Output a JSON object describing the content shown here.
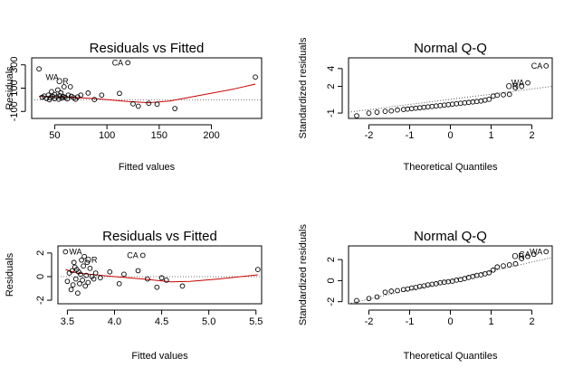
{
  "chart_data": [
    {
      "type": "scatter",
      "title": "Residuals vs Fitted",
      "xlabel": "Fitted values",
      "ylabel": "Residuals",
      "xlim": [
        28,
        248
      ],
      "ylim": [
        -160,
        360
      ],
      "xticks": [
        50,
        100,
        150,
        200
      ],
      "yticks": [
        -100,
        100,
        300
      ],
      "ytick_labels": [
        "-100",
        "100",
        "300"
      ],
      "points": [
        [
          35,
          265
        ],
        [
          38,
          22
        ],
        [
          40,
          32
        ],
        [
          42,
          12
        ],
        [
          44,
          40
        ],
        [
          45,
          0
        ],
        [
          46,
          18
        ],
        [
          47,
          70
        ],
        [
          48,
          30
        ],
        [
          50,
          10
        ],
        [
          50,
          45
        ],
        [
          52,
          25
        ],
        [
          53,
          85
        ],
        [
          54,
          5
        ],
        [
          55,
          35
        ],
        [
          56,
          60
        ],
        [
          57,
          15
        ],
        [
          58,
          28
        ],
        [
          59,
          112
        ],
        [
          60,
          22
        ],
        [
          62,
          8
        ],
        [
          63,
          40
        ],
        [
          65,
          112
        ],
        [
          66,
          30
        ],
        [
          68,
          18
        ],
        [
          70,
          5
        ],
        [
          72,
          25
        ],
        [
          75,
          40
        ],
        [
          82,
          58
        ],
        [
          88,
          2
        ],
        [
          95,
          40
        ],
        [
          112,
          55
        ],
        [
          120,
          318
        ],
        [
          125,
          -35
        ],
        [
          130,
          -55
        ],
        [
          140,
          -30
        ],
        [
          148,
          -38
        ],
        [
          165,
          -75
        ],
        [
          242,
          195
        ]
      ],
      "smooth": [
        [
          35,
          30
        ],
        [
          60,
          25
        ],
        [
          90,
          10
        ],
        [
          120,
          -15
        ],
        [
          140,
          -25
        ],
        [
          160,
          -10
        ],
        [
          190,
          40
        ],
        [
          220,
          90
        ],
        [
          242,
          135
        ]
      ],
      "refline": 0,
      "point_labels": [
        {
          "text": "CA",
          "x": 120,
          "y": 318
        },
        {
          "text": "WA",
          "x": 38,
          "y": 195
        },
        {
          "text": "OR",
          "x": 48,
          "y": 160
        }
      ]
    },
    {
      "type": "scatter",
      "title": "Normal Q-Q",
      "xlabel": "Theoretical Quantiles",
      "ylabel": "Standardized residuals",
      "xlim": [
        -2.5,
        2.5
      ],
      "ylim": [
        -1.6,
        5.2
      ],
      "xticks": [
        -2,
        -1,
        0,
        1,
        2
      ],
      "yticks": [
        -1,
        2,
        4
      ],
      "ytick_labels": [
        "-1",
        "2",
        "4"
      ],
      "refline_points": [
        [
          -2.5,
          -0.9
        ],
        [
          2.5,
          2.0
        ]
      ],
      "points": [
        [
          -2.3,
          -1.3
        ],
        [
          -2.0,
          -1.0
        ],
        [
          -1.8,
          -0.9
        ],
        [
          -1.6,
          -0.8
        ],
        [
          -1.45,
          -0.75
        ],
        [
          -1.3,
          -0.65
        ],
        [
          -1.15,
          -0.6
        ],
        [
          -1.05,
          -0.55
        ],
        [
          -0.95,
          -0.5
        ],
        [
          -0.85,
          -0.45
        ],
        [
          -0.75,
          -0.4
        ],
        [
          -0.65,
          -0.35
        ],
        [
          -0.55,
          -0.3
        ],
        [
          -0.45,
          -0.25
        ],
        [
          -0.35,
          -0.2
        ],
        [
          -0.25,
          -0.15
        ],
        [
          -0.15,
          -0.1
        ],
        [
          -0.05,
          -0.05
        ],
        [
          0.05,
          0.0
        ],
        [
          0.15,
          0.05
        ],
        [
          0.25,
          0.1
        ],
        [
          0.35,
          0.15
        ],
        [
          0.45,
          0.2
        ],
        [
          0.55,
          0.25
        ],
        [
          0.65,
          0.3
        ],
        [
          0.75,
          0.35
        ],
        [
          0.85,
          0.45
        ],
        [
          0.95,
          0.55
        ],
        [
          1.05,
          0.9
        ],
        [
          1.15,
          1.0
        ],
        [
          1.3,
          1.05
        ],
        [
          1.45,
          1.1
        ],
        [
          1.6,
          1.85
        ],
        [
          1.75,
          2.0
        ],
        [
          1.9,
          2.4
        ],
        [
          2.35,
          4.3
        ]
      ],
      "point_labels": [
        {
          "text": "CA",
          "x": 2.35,
          "y": 4.3
        },
        {
          "text": "WA",
          "x": 1.9,
          "y": 2.4
        },
        {
          "text": "OR",
          "x": 1.75,
          "y": 2.0
        }
      ]
    },
    {
      "type": "scatter",
      "title": "Residuals vs Fitted",
      "xlabel": "Fitted values",
      "ylabel": "Residuals",
      "xlim": [
        3.4,
        5.56
      ],
      "ylim": [
        -2.3,
        2.6
      ],
      "xticks": [
        3.5,
        4.0,
        4.5,
        5.0,
        5.5
      ],
      "xtick_labels": [
        "3.5",
        "4.0",
        "4.5",
        "5.0",
        "5.5"
      ],
      "yticks": [
        -2,
        0,
        2
      ],
      "ytick_labels": [
        "-2",
        "0",
        "2"
      ],
      "points": [
        [
          3.48,
          2.1
        ],
        [
          3.5,
          -0.4
        ],
        [
          3.52,
          0.3
        ],
        [
          3.54,
          -1.1
        ],
        [
          3.55,
          0.5
        ],
        [
          3.56,
          -0.7
        ],
        [
          3.57,
          1.2
        ],
        [
          3.58,
          0.8
        ],
        [
          3.59,
          -0.2
        ],
        [
          3.6,
          0.6
        ],
        [
          3.61,
          -1.4
        ],
        [
          3.62,
          0.4
        ],
        [
          3.63,
          -0.6
        ],
        [
          3.64,
          0.2
        ],
        [
          3.65,
          1.4
        ],
        [
          3.66,
          -0.3
        ],
        [
          3.67,
          0.9
        ],
        [
          3.68,
          1.7
        ],
        [
          3.69,
          -0.8
        ],
        [
          3.7,
          0.1
        ],
        [
          3.71,
          1.2
        ],
        [
          3.72,
          -0.5
        ],
        [
          3.74,
          0.7
        ],
        [
          3.76,
          0.0
        ],
        [
          3.78,
          -0.2
        ],
        [
          3.8,
          0.3
        ],
        [
          3.85,
          -0.1
        ],
        [
          3.95,
          0.4
        ],
        [
          4.05,
          -0.6
        ],
        [
          4.1,
          0.2
        ],
        [
          4.25,
          0.5
        ],
        [
          4.3,
          1.8
        ],
        [
          4.35,
          -0.2
        ],
        [
          4.45,
          -0.9
        ],
        [
          4.5,
          -0.1
        ],
        [
          4.55,
          -0.3
        ],
        [
          4.72,
          -0.8
        ],
        [
          5.52,
          0.6
        ]
      ],
      "smooth": [
        [
          3.48,
          0.6
        ],
        [
          3.6,
          0.3
        ],
        [
          3.8,
          0.15
        ],
        [
          4.0,
          0.0
        ],
        [
          4.3,
          -0.2
        ],
        [
          4.6,
          -0.45
        ],
        [
          4.8,
          -0.4
        ],
        [
          5.1,
          -0.2
        ],
        [
          5.52,
          0.15
        ]
      ],
      "refline": 0,
      "point_labels": [
        {
          "text": "CA",
          "x": 4.3,
          "y": 1.8
        },
        {
          "text": "WA",
          "x": 3.48,
          "y": 2.1
        },
        {
          "text": "OR",
          "x": 3.65,
          "y": 1.4
        }
      ]
    },
    {
      "type": "scatter",
      "title": "Normal Q-Q",
      "xlabel": "Theoretical Quantiles",
      "ylabel": "Standardized residuals",
      "xlim": [
        -2.5,
        2.5
      ],
      "ylim": [
        -2.2,
        3.3
      ],
      "xticks": [
        -2,
        -1,
        0,
        1,
        2
      ],
      "yticks": [
        -2,
        0,
        2
      ],
      "ytick_labels": [
        "-2",
        "0",
        "2"
      ],
      "refline_points": [
        [
          -2.5,
          -2.2
        ],
        [
          2.5,
          2.2
        ]
      ],
      "points": [
        [
          -2.3,
          -1.9
        ],
        [
          -2.0,
          -1.7
        ],
        [
          -1.8,
          -1.55
        ],
        [
          -1.6,
          -1.1
        ],
        [
          -1.45,
          -1.0
        ],
        [
          -1.3,
          -0.95
        ],
        [
          -1.15,
          -0.85
        ],
        [
          -1.05,
          -0.8
        ],
        [
          -0.95,
          -0.7
        ],
        [
          -0.85,
          -0.65
        ],
        [
          -0.75,
          -0.55
        ],
        [
          -0.65,
          -0.5
        ],
        [
          -0.55,
          -0.4
        ],
        [
          -0.45,
          -0.35
        ],
        [
          -0.35,
          -0.3
        ],
        [
          -0.25,
          -0.2
        ],
        [
          -0.15,
          -0.15
        ],
        [
          -0.05,
          -0.1
        ],
        [
          0.05,
          -0.05
        ],
        [
          0.15,
          0.05
        ],
        [
          0.25,
          0.1
        ],
        [
          0.35,
          0.2
        ],
        [
          0.45,
          0.3
        ],
        [
          0.55,
          0.4
        ],
        [
          0.65,
          0.5
        ],
        [
          0.75,
          0.55
        ],
        [
          0.85,
          0.65
        ],
        [
          0.95,
          0.75
        ],
        [
          1.05,
          1.0
        ],
        [
          1.15,
          1.3
        ],
        [
          1.3,
          1.4
        ],
        [
          1.45,
          1.5
        ],
        [
          1.6,
          1.6
        ],
        [
          1.75,
          2.1
        ],
        [
          1.9,
          2.3
        ],
        [
          2.05,
          2.5
        ],
        [
          2.35,
          2.75
        ]
      ],
      "point_labels": [
        {
          "text": "WA",
          "x": 2.35,
          "y": 2.75
        },
        {
          "text": "CA",
          "x": 2.05,
          "y": 2.5
        },
        {
          "text": "OR",
          "x": 1.9,
          "y": 2.3
        }
      ]
    }
  ]
}
